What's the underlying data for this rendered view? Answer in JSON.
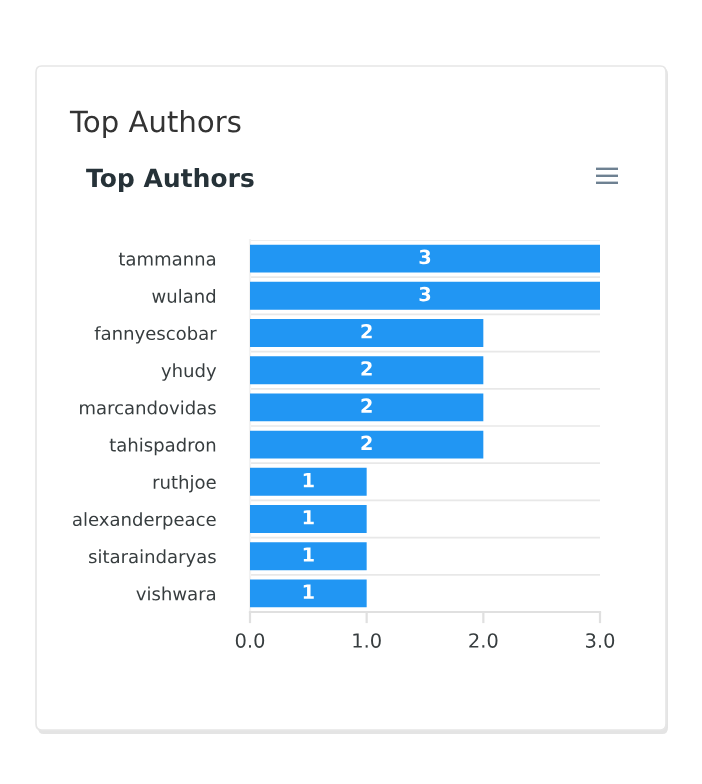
{
  "chart_data": {
    "type": "bar",
    "orientation": "horizontal",
    "title": "Top Authors",
    "subtitle": "Top Authors",
    "categories": [
      "tammanna",
      "wuland",
      "fannyescobar",
      "yhudy",
      "marcandovidas",
      "tahispadron",
      "ruthjoe",
      "alexanderpeace",
      "sitaraindaryas",
      "vishwara"
    ],
    "values": [
      3,
      3,
      2,
      2,
      2,
      2,
      1,
      1,
      1,
      1
    ],
    "color": "#2196f3",
    "xlim": [
      0,
      3
    ],
    "xticks": [
      {
        "value": 0,
        "label": "0.0"
      },
      {
        "value": 1,
        "label": "1.0"
      },
      {
        "value": 2,
        "label": "2.0"
      },
      {
        "value": 3,
        "label": "3.0"
      }
    ],
    "data_labels": true,
    "grid": "y"
  }
}
